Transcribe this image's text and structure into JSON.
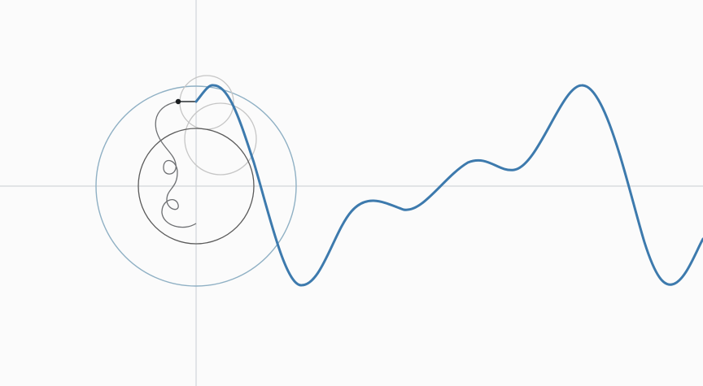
{
  "colors": {
    "background": "#fbfbfb",
    "axis": "#d2d6da",
    "wave": "#3d7aad",
    "circle_large": "#8fb0c4",
    "circle_medium": "#5a5a5a",
    "circle_small": "#c6c6c6",
    "epicycle_path": "#6d6f72",
    "connector": "#2b2f33",
    "tip_point": "#1a1d20"
  },
  "diagram": {
    "type": "fourier-epicycle-series",
    "components": [
      {
        "name": "large-circle",
        "amplitude": 1.0,
        "harmonic": 1
      },
      {
        "name": "medium-circle",
        "amplitude": 0.58,
        "harmonic": 2
      },
      {
        "name": "small-circle",
        "amplitude": 0.33,
        "harmonic": 3
      }
    ]
  }
}
